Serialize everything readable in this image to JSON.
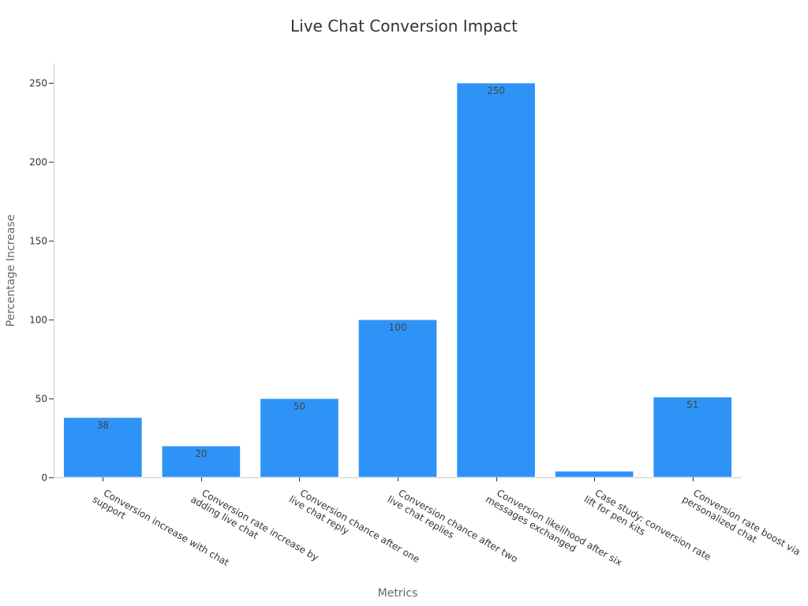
{
  "chart_data": {
    "type": "bar",
    "title": "Live Chat Conversion Impact",
    "xlabel": "Metrics",
    "ylabel": "Percentage Increase",
    "categories": [
      [
        "Conversion increase with chat",
        "support"
      ],
      [
        "Conversion rate increase by",
        "adding live chat"
      ],
      [
        "Conversion chance after one",
        "live chat reply"
      ],
      [
        "Conversion chance after two",
        "live chat replies"
      ],
      [
        "Conversion likelihood after six",
        "messages exchanged"
      ],
      [
        "Case study: conversion rate",
        "lift for pen kits"
      ],
      [
        "Conversion rate boost via",
        "personalized chat"
      ]
    ],
    "values": [
      38,
      20,
      50,
      100,
      250,
      4,
      51
    ],
    "data_labels": [
      "38",
      "20",
      "50",
      "100",
      "250",
      "",
      "51"
    ],
    "ylim": [
      0,
      262.5
    ],
    "yticks": [
      0,
      50,
      100,
      150,
      200,
      250
    ],
    "bar_color": "#2e93f6",
    "grid": false,
    "legend": "none"
  }
}
